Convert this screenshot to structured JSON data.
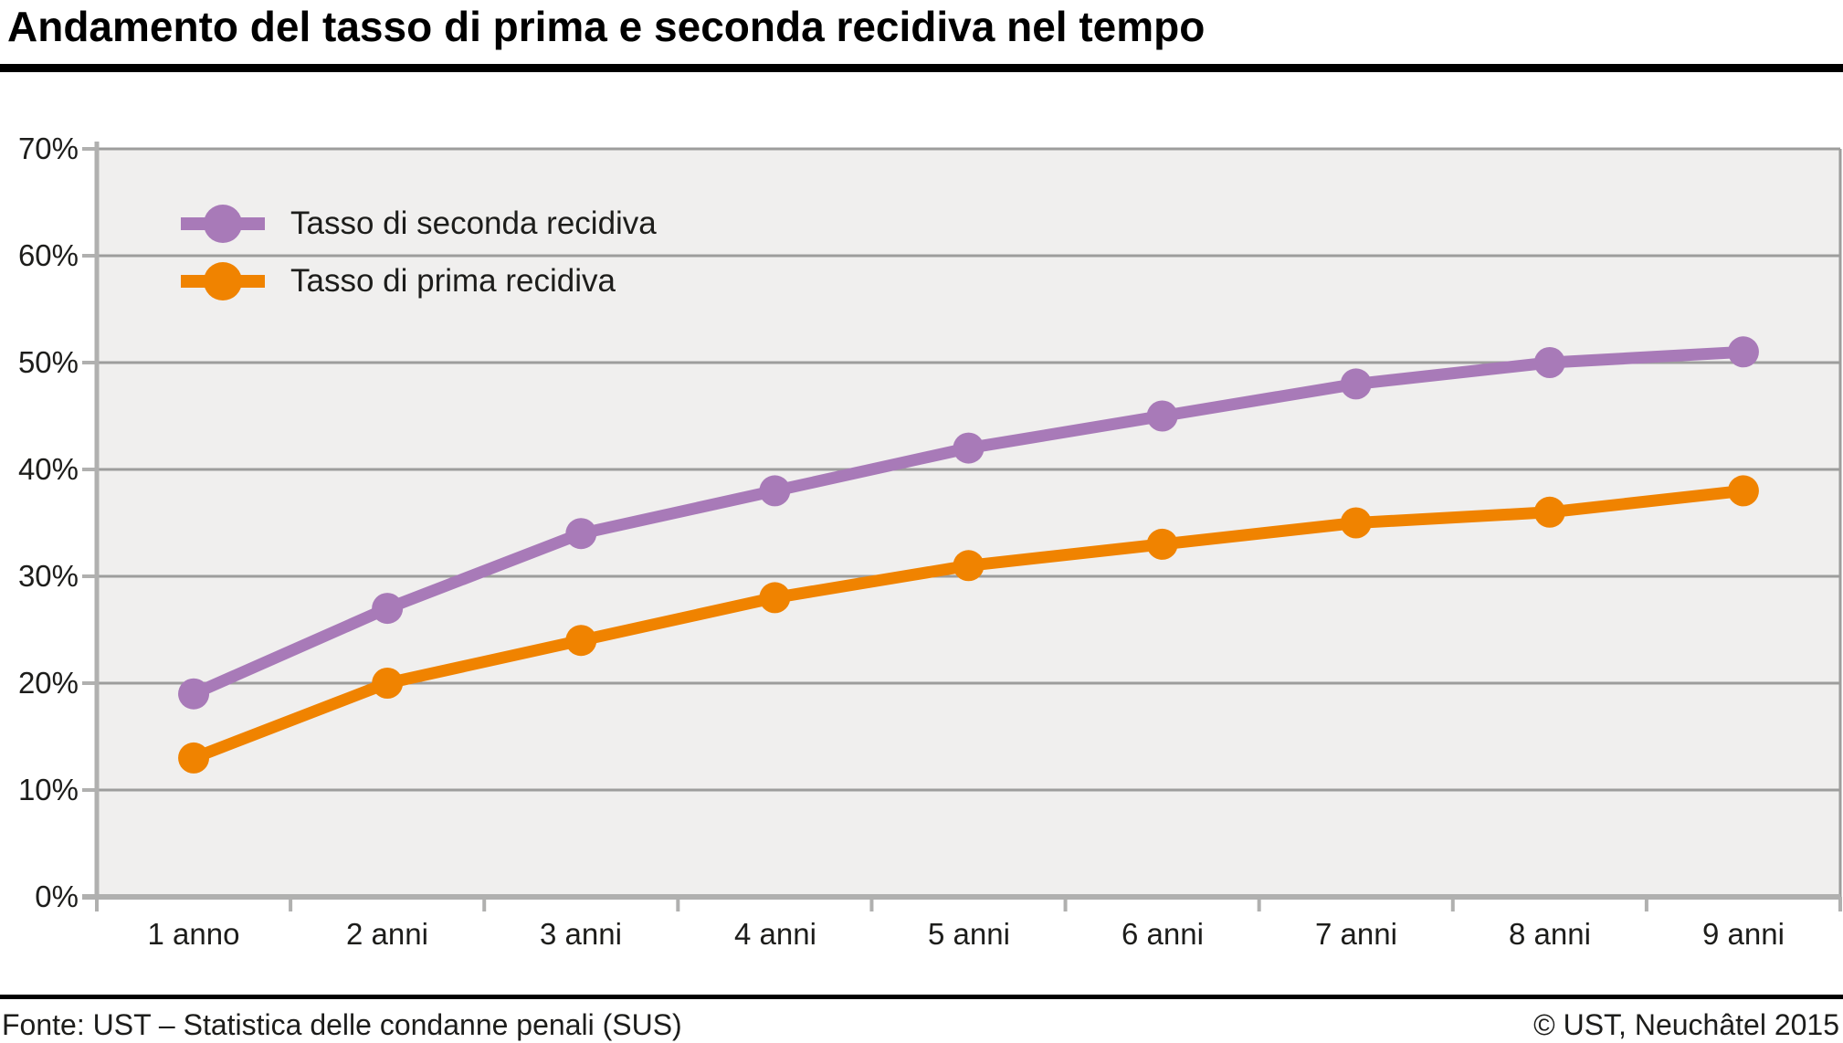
{
  "title": "Andamento del tasso di prima e seconda recidiva nel tempo",
  "footer": {
    "source": "Fonte: UST – Statistica delle condanne penali (SUS)",
    "copyright": "© UST, Neuchâtel 2015"
  },
  "colors": {
    "seconda_recidiva": "#a87ab8",
    "prima_recidiva": "#f08300",
    "plot_background": "#f0efee",
    "gridline": "#9d9d9c",
    "axis": "#b0b0af",
    "text": "#1d1d1b",
    "title_rule": "#000000"
  },
  "chart_data": {
    "type": "line",
    "title": "Andamento del tasso di prima e seconda recidiva nel tempo",
    "categories": [
      "1 anno",
      "2 anni",
      "3 anni",
      "4 anni",
      "5 anni",
      "6 anni",
      "7 anni",
      "8 anni",
      "9 anni"
    ],
    "series": [
      {
        "name": "Tasso di seconda recidiva",
        "color": "#a87ab8",
        "values": [
          19,
          27,
          34,
          38,
          42,
          45,
          48,
          50,
          51
        ]
      },
      {
        "name": "Tasso di prima recidiva",
        "color": "#f08300",
        "values": [
          13,
          20,
          24,
          28,
          31,
          33,
          35,
          36,
          38
        ]
      }
    ],
    "xlabel": "",
    "ylabel": "",
    "unit": "%",
    "ylim": [
      0,
      70
    ],
    "ytick_step": 10,
    "ytick_labels": [
      "70%",
      "60%",
      "50%",
      "40%",
      "30%",
      "20%",
      "10%",
      "0%"
    ],
    "grid": true,
    "legend_position": "top-left"
  }
}
